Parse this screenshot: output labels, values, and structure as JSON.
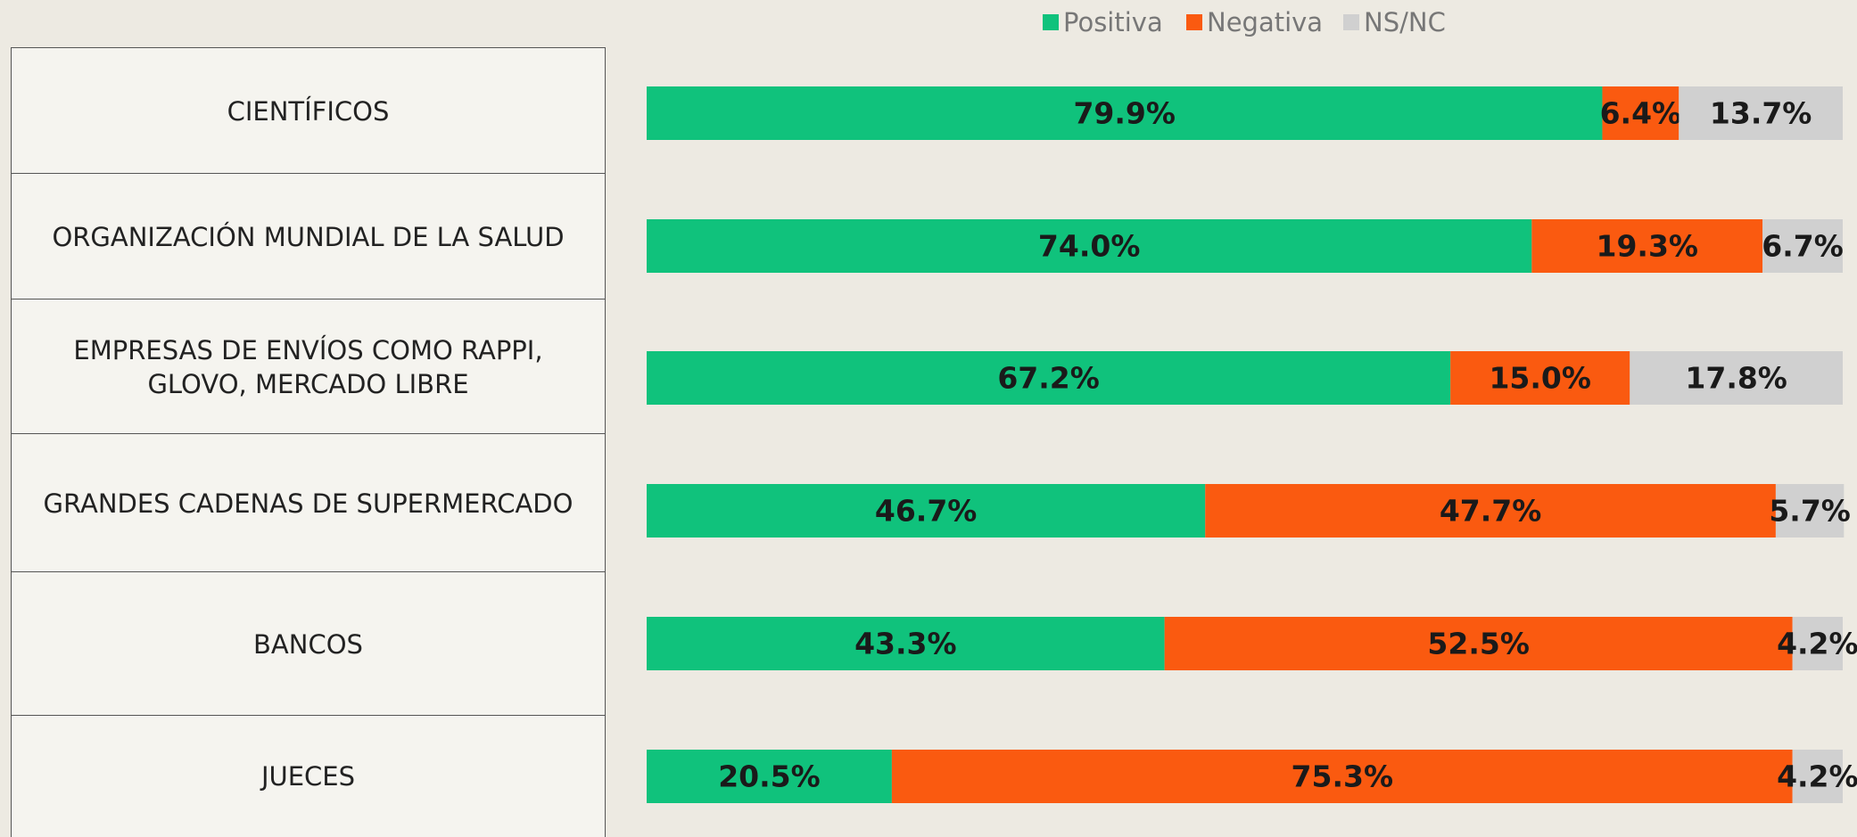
{
  "chart_data": {
    "type": "stacked-barh",
    "categories": [
      "CIENTÍFICOS",
      "ORGANIZACIÓN MUNDIAL DE LA SALUD",
      "EMPRESAS DE ENVÍOS COMO RAPPI, GLOVO, MERCADO LIBRE",
      "GRANDES CADENAS DE SUPERMERCADO",
      "BANCOS",
      "JUECES"
    ],
    "series": [
      {
        "name": "Positiva",
        "color": "#10c27c",
        "values": [
          79.9,
          74.0,
          67.2,
          46.7,
          43.3,
          20.5
        ],
        "value_labels": [
          "79.9%",
          "74.0%",
          "67.2%",
          "46.7%",
          "43.3%",
          "20.5%"
        ]
      },
      {
        "name": "Negativa",
        "color": "#fa5a10",
        "values": [
          6.4,
          19.3,
          15.0,
          47.7,
          52.5,
          75.3
        ],
        "value_labels": [
          "6.4%",
          "19.3%",
          "15.0%",
          "47.7%",
          "52.5%",
          "75.3%"
        ]
      },
      {
        "name": "NS/NC",
        "color": "#d0d0d0",
        "values": [
          13.7,
          6.7,
          17.8,
          5.7,
          4.2,
          4.2
        ],
        "value_labels": [
          "13.7%",
          "6.7%",
          "17.8%",
          "5.7%",
          "4.2%",
          "4.2%"
        ]
      }
    ],
    "xlim": [
      0,
      100
    ],
    "legend": "top"
  }
}
